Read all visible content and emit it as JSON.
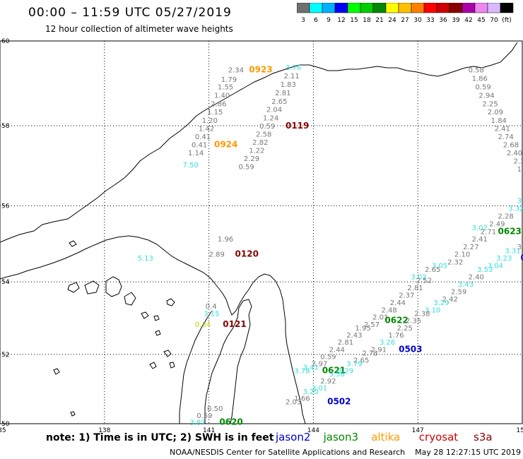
{
  "header": {
    "title": "00:00 – 11:59 UTC 05/27/2019",
    "subtitle": "12 hour collection of altimeter wave heights"
  },
  "color_scale": {
    "colors": [
      "#707070",
      "#00ffff",
      "#00b0ff",
      "#0000ff",
      "#00ff00",
      "#00cc00",
      "#008800",
      "#ffff00",
      "#ffc000",
      "#ff8000",
      "#ff0000",
      "#cc0000",
      "#880000",
      "#aa00aa",
      "#ee88ee",
      "#d8b8ff",
      "#000000"
    ],
    "labels": [
      "3",
      "6",
      "9",
      "12",
      "15",
      "18",
      "21",
      "24",
      "27",
      "30",
      "33",
      "36",
      "39",
      "42",
      "45",
      "70",
      "(ft)"
    ]
  },
  "axes": {
    "lon_labels": [
      "135",
      "138",
      "141",
      "144",
      "147",
      "150"
    ],
    "lat_labels": [
      "60",
      "58",
      "56",
      "54",
      "52",
      "50"
    ]
  },
  "footer": {
    "note": "note: 1) Time is in UTC; 2) SWH is in feet",
    "legend": [
      {
        "name": "jason2",
        "color": "#0000cc"
      },
      {
        "name": "jason3",
        "color": "#008800"
      },
      {
        "name": "altika",
        "color": "#ff9900"
      },
      {
        "name": "cryosat",
        "color": "#cc0000"
      },
      {
        "name": "s3a",
        "color": "#880000"
      }
    ],
    "credit": "NOAA/NESDIS Center for Satellite Applications and Research    May 28 12:27:15 UTC 2019"
  },
  "observations": [
    {
      "t": "2.34",
      "c": "#777777",
      "lon": 141.55,
      "lat": 59.27
    },
    {
      "t": "0923",
      "c": "#ff9900",
      "lon": 142.15,
      "lat": 59.27,
      "pass": true
    },
    {
      "t": "3.76",
      "c": "#33dddd",
      "lon": 143.2,
      "lat": 59.33
    },
    {
      "t": "2.11",
      "c": "#777777",
      "lon": 143.15,
      "lat": 59.13
    },
    {
      "t": "1.79",
      "c": "#777777",
      "lon": 141.35,
      "lat": 59.05
    },
    {
      "t": "1.83",
      "c": "#777777",
      "lon": 143.05,
      "lat": 58.93
    },
    {
      "t": "1.55",
      "c": "#777777",
      "lon": 141.25,
      "lat": 58.87
    },
    {
      "t": "2.81",
      "c": "#777777",
      "lon": 142.9,
      "lat": 58.73
    },
    {
      "t": "1.40",
      "c": "#777777",
      "lon": 141.15,
      "lat": 58.67
    },
    {
      "t": "2.65",
      "c": "#777777",
      "lon": 142.8,
      "lat": 58.53
    },
    {
      "t": "2.86",
      "c": "#777777",
      "lon": 141.05,
      "lat": 58.47
    },
    {
      "t": "2.04",
      "c": "#777777",
      "lon": 142.65,
      "lat": 58.33
    },
    {
      "t": "1.15",
      "c": "#777777",
      "lon": 140.95,
      "lat": 58.27
    },
    {
      "t": "1.24",
      "c": "#777777",
      "lon": 142.55,
      "lat": 58.13
    },
    {
      "t": "1.20",
      "c": "#777777",
      "lon": 140.8,
      "lat": 58.07
    },
    {
      "t": "0.59",
      "c": "#777777",
      "lon": 142.45,
      "lat": 57.93
    },
    {
      "t": "0119",
      "c": "#880000",
      "lon": 143.2,
      "lat": 57.93,
      "pass": true
    },
    {
      "t": "1.42",
      "c": "#777777",
      "lon": 140.7,
      "lat": 57.87
    },
    {
      "t": "2.58",
      "c": "#777777",
      "lon": 142.35,
      "lat": 57.73
    },
    {
      "t": "0.41",
      "c": "#777777",
      "lon": 140.6,
      "lat": 57.67
    },
    {
      "t": "2.82",
      "c": "#777777",
      "lon": 142.25,
      "lat": 57.53
    },
    {
      "t": "0.41",
      "c": "#777777",
      "lon": 140.5,
      "lat": 57.47
    },
    {
      "t": "0924",
      "c": "#ff9900",
      "lon": 141.15,
      "lat": 57.47,
      "pass": true
    },
    {
      "t": "1.22",
      "c": "#777777",
      "lon": 142.15,
      "lat": 57.33
    },
    {
      "t": "1.14",
      "c": "#777777",
      "lon": 140.4,
      "lat": 57.27
    },
    {
      "t": "2.29",
      "c": "#777777",
      "lon": 142.0,
      "lat": 57.13
    },
    {
      "t": "7.50",
      "c": "#33dddd",
      "lon": 140.25,
      "lat": 56.97
    },
    {
      "t": "0.59",
      "c": "#777777",
      "lon": 141.85,
      "lat": 56.93
    },
    {
      "t": "0.58",
      "c": "#777777",
      "lon": 148.45,
      "lat": 59.27
    },
    {
      "t": "1.86",
      "c": "#777777",
      "lon": 148.55,
      "lat": 59.07
    },
    {
      "t": "0.59",
      "c": "#777777",
      "lon": 148.65,
      "lat": 58.87
    },
    {
      "t": "2.94",
      "c": "#777777",
      "lon": 148.75,
      "lat": 58.67
    },
    {
      "t": "2.25",
      "c": "#777777",
      "lon": 148.85,
      "lat": 58.47
    },
    {
      "t": "2.09",
      "c": "#777777",
      "lon": 149.0,
      "lat": 58.27
    },
    {
      "t": "1.84",
      "c": "#777777",
      "lon": 149.1,
      "lat": 58.07
    },
    {
      "t": "2.41",
      "c": "#777777",
      "lon": 149.2,
      "lat": 57.87
    },
    {
      "t": "2.74",
      "c": "#777777",
      "lon": 149.3,
      "lat": 57.67
    },
    {
      "t": "2.68",
      "c": "#777777",
      "lon": 149.45,
      "lat": 57.47
    },
    {
      "t": "2.40",
      "c": "#777777",
      "lon": 149.55,
      "lat": 57.27
    },
    {
      "t": "2.2",
      "c": "#777777",
      "lon": 149.75,
      "lat": 57.07
    },
    {
      "t": "1.",
      "c": "#777777",
      "lon": 149.85,
      "lat": 56.87
    },
    {
      "t": "1.96",
      "c": "#777777",
      "lon": 141.25,
      "lat": 55.07
    },
    {
      "t": "2.89",
      "c": "#777777",
      "lon": 141.0,
      "lat": 54.67
    },
    {
      "t": "0120",
      "c": "#880000",
      "lon": 141.75,
      "lat": 54.67,
      "pass": true
    },
    {
      "t": "5.13",
      "c": "#33dddd",
      "lon": 138.95,
      "lat": 54.57
    },
    {
      "t": "3.3",
      "c": "#33dddd",
      "lon": 149.85,
      "lat": 56.07
    },
    {
      "t": "3.32",
      "c": "#33dddd",
      "lon": 149.6,
      "lat": 55.87
    },
    {
      "t": "2.28",
      "c": "#777777",
      "lon": 149.3,
      "lat": 55.67
    },
    {
      "t": "2.49",
      "c": "#777777",
      "lon": 149.05,
      "lat": 55.47
    },
    {
      "t": "3.02",
      "c": "#33dddd",
      "lon": 148.55,
      "lat": 55.37
    },
    {
      "t": "0623",
      "c": "#008800",
      "lon": 149.3,
      "lat": 55.27,
      "pass": true
    },
    {
      "t": "2.71",
      "c": "#777777",
      "lon": 148.8,
      "lat": 55.27
    },
    {
      "t": "2.41",
      "c": "#777777",
      "lon": 148.55,
      "lat": 55.07
    },
    {
      "t": "2.27",
      "c": "#777777",
      "lon": 148.3,
      "lat": 54.87
    },
    {
      "t": "3.0",
      "c": "#777777",
      "lon": 149.85,
      "lat": 54.87
    },
    {
      "t": "2.10",
      "c": "#777777",
      "lon": 148.05,
      "lat": 54.67
    },
    {
      "t": "3.31",
      "c": "#33dddd",
      "lon": 149.5,
      "lat": 54.77
    },
    {
      "t": "0",
      "c": "#0000cc",
      "lon": 149.95,
      "lat": 54.57,
      "pass": true
    },
    {
      "t": "2.32",
      "c": "#777777",
      "lon": 147.85,
      "lat": 54.47
    },
    {
      "t": "3.23",
      "c": "#33dddd",
      "lon": 149.25,
      "lat": 54.57
    },
    {
      "t": "3.05",
      "c": "#33dddd",
      "lon": 147.4,
      "lat": 54.37
    },
    {
      "t": "3.04",
      "c": "#33dddd",
      "lon": 149.0,
      "lat": 54.37
    },
    {
      "t": "2.65",
      "c": "#777777",
      "lon": 147.2,
      "lat": 54.27
    },
    {
      "t": "3.53",
      "c": "#33dddd",
      "lon": 148.7,
      "lat": 54.27
    },
    {
      "t": "2.40",
      "c": "#777777",
      "lon": 148.45,
      "lat": 54.07
    },
    {
      "t": "3.02",
      "c": "#33dddd",
      "lon": 146.8,
      "lat": 54.07
    },
    {
      "t": "2.52",
      "c": "#777777",
      "lon": 146.95,
      "lat": 53.97
    },
    {
      "t": "3.43",
      "c": "#33dddd",
      "lon": 148.15,
      "lat": 53.87
    },
    {
      "t": "2.81",
      "c": "#777777",
      "lon": 146.7,
      "lat": 53.77
    },
    {
      "t": "2.59",
      "c": "#777777",
      "lon": 147.95,
      "lat": 53.67
    },
    {
      "t": "2.37",
      "c": "#777777",
      "lon": 146.45,
      "lat": 53.57
    },
    {
      "t": "2.42",
      "c": "#777777",
      "lon": 147.7,
      "lat": 53.47
    },
    {
      "t": "2.44",
      "c": "#777777",
      "lon": 146.2,
      "lat": 53.37
    },
    {
      "t": "3.29",
      "c": "#33dddd",
      "lon": 147.45,
      "lat": 53.37
    },
    {
      "t": "3.10",
      "c": "#33dddd",
      "lon": 147.2,
      "lat": 53.17
    },
    {
      "t": "2.48",
      "c": "#777777",
      "lon": 145.95,
      "lat": 53.17
    },
    {
      "t": "2.38",
      "c": "#777777",
      "lon": 146.9,
      "lat": 53.07
    },
    {
      "t": "2.01",
      "c": "#777777",
      "lon": 145.7,
      "lat": 52.97
    },
    {
      "t": "0622",
      "c": "#008800",
      "lon": 146.05,
      "lat": 52.87,
      "pass": true
    },
    {
      "t": "2.35",
      "c": "#777777",
      "lon": 146.65,
      "lat": 52.87
    },
    {
      "t": "2.57",
      "c": "#777777",
      "lon": 145.45,
      "lat": 52.77
    },
    {
      "t": "1.95",
      "c": "#777777",
      "lon": 145.2,
      "lat": 52.67
    },
    {
      "t": "2.25",
      "c": "#777777",
      "lon": 146.4,
      "lat": 52.67
    },
    {
      "t": "1.76",
      "c": "#777777",
      "lon": 146.15,
      "lat": 52.47
    },
    {
      "t": "2.43",
      "c": "#777777",
      "lon": 144.95,
      "lat": 52.47
    },
    {
      "t": "3.26",
      "c": "#33dddd",
      "lon": 145.9,
      "lat": 52.27
    },
    {
      "t": "2.81",
      "c": "#777777",
      "lon": 144.7,
      "lat": 52.27
    },
    {
      "t": "0503",
      "c": "#0000cc",
      "lon": 146.45,
      "lat": 52.07,
      "pass": true
    },
    {
      "t": "2.91",
      "c": "#777777",
      "lon": 145.65,
      "lat": 52.07
    },
    {
      "t": "2.44",
      "c": "#777777",
      "lon": 144.45,
      "lat": 52.07
    },
    {
      "t": "2.78",
      "c": "#777777",
      "lon": 145.4,
      "lat": 51.97
    },
    {
      "t": "0.59",
      "c": "#777777",
      "lon": 144.2,
      "lat": 51.87
    },
    {
      "t": "2.65",
      "c": "#777777",
      "lon": 145.15,
      "lat": 51.77
    },
    {
      "t": "2.97",
      "c": "#777777",
      "lon": 143.95,
      "lat": 51.67
    },
    {
      "t": "3.79",
      "c": "#33dddd",
      "lon": 144.95,
      "lat": 51.67
    },
    {
      "t": "3.41",
      "c": "#33dddd",
      "lon": 143.7,
      "lat": 51.57
    },
    {
      "t": "3.29",
      "c": "#33dddd",
      "lon": 144.7,
      "lat": 51.47
    },
    {
      "t": "3.78",
      "c": "#33dddd",
      "lon": 143.45,
      "lat": 51.47
    },
    {
      "t": "0621",
      "c": "#008800",
      "lon": 144.25,
      "lat": 51.47,
      "pass": true
    },
    {
      "t": "3.56",
      "c": "#33dddd",
      "lon": 144.45,
      "lat": 51.37
    },
    {
      "t": "2.92",
      "c": "#777777",
      "lon": 144.2,
      "lat": 51.17
    },
    {
      "t": "3.01",
      "c": "#33dddd",
      "lon": 143.95,
      "lat": 50.97
    },
    {
      "t": "3.20",
      "c": "#33dddd",
      "lon": 143.7,
      "lat": 50.87
    },
    {
      "t": "1.66",
      "c": "#777777",
      "lon": 143.45,
      "lat": 50.67
    },
    {
      "t": "0502",
      "c": "#0000cc",
      "lon": 144.4,
      "lat": 50.57,
      "pass": true
    },
    {
      "t": "2.03",
      "c": "#777777",
      "lon": 143.2,
      "lat": 50.57
    },
    {
      "t": "0.4",
      "c": "#777777",
      "lon": 140.9,
      "lat": 53.27
    },
    {
      "t": "3.15",
      "c": "#33dddd",
      "lon": 140.85,
      "lat": 53.07
    },
    {
      "t": "0.34",
      "c": "#cccc00",
      "lon": 140.6,
      "lat": 52.77
    },
    {
      "t": "0121",
      "c": "#880000",
      "lon": 141.4,
      "lat": 52.77,
      "pass": true
    },
    {
      "t": "0.50",
      "c": "#777777",
      "lon": 140.95,
      "lat": 50.37
    },
    {
      "t": "0.59",
      "c": "#777777",
      "lon": 140.65,
      "lat": 50.17
    },
    {
      "t": "3.87",
      "c": "#33dddd",
      "lon": 140.45,
      "lat": 49.97
    },
    {
      "t": "0620",
      "c": "#008800",
      "lon": 141.3,
      "lat": 49.97,
      "pass": true
    }
  ]
}
